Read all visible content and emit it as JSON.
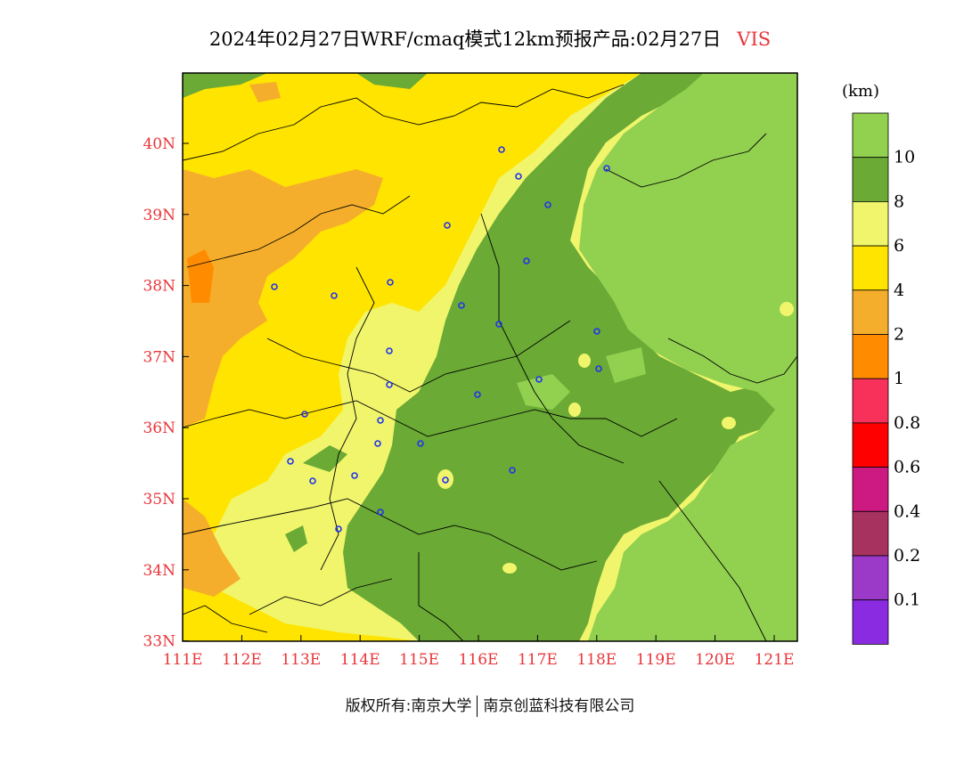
{
  "header": {
    "title": "2024年02月27日WRF/cmaq模式12km预报产品:02月27日",
    "variable": "VIS"
  },
  "map": {
    "lat_labels": [
      "40N",
      "39N",
      "38N",
      "37N",
      "36N",
      "35N",
      "34N",
      "33N"
    ],
    "lon_labels": [
      "111E",
      "112E",
      "113E",
      "114E",
      "115E",
      "116E",
      "117E",
      "118E",
      "119E",
      "120E",
      "121E"
    ],
    "label_color": "#e8353a"
  },
  "legend": {
    "unit": "(km)",
    "labels": [
      "10",
      "8",
      "6",
      "4",
      "2",
      "1",
      "0.8",
      "0.6",
      "0.4",
      "0.2",
      "0.1"
    ],
    "colors": [
      "#92d050",
      "#6aaa35",
      "#f0f56c",
      "#ffe400",
      "#f5ae2c",
      "#ff8c00",
      "#f7315a",
      "#ff0000",
      "#cc1a82",
      "#a8325f",
      "#9b39c8",
      "#8a2be2"
    ]
  },
  "footer": {
    "copyright": "版权所有:南京大学",
    "company": "南京创蓝科技有限公司"
  }
}
